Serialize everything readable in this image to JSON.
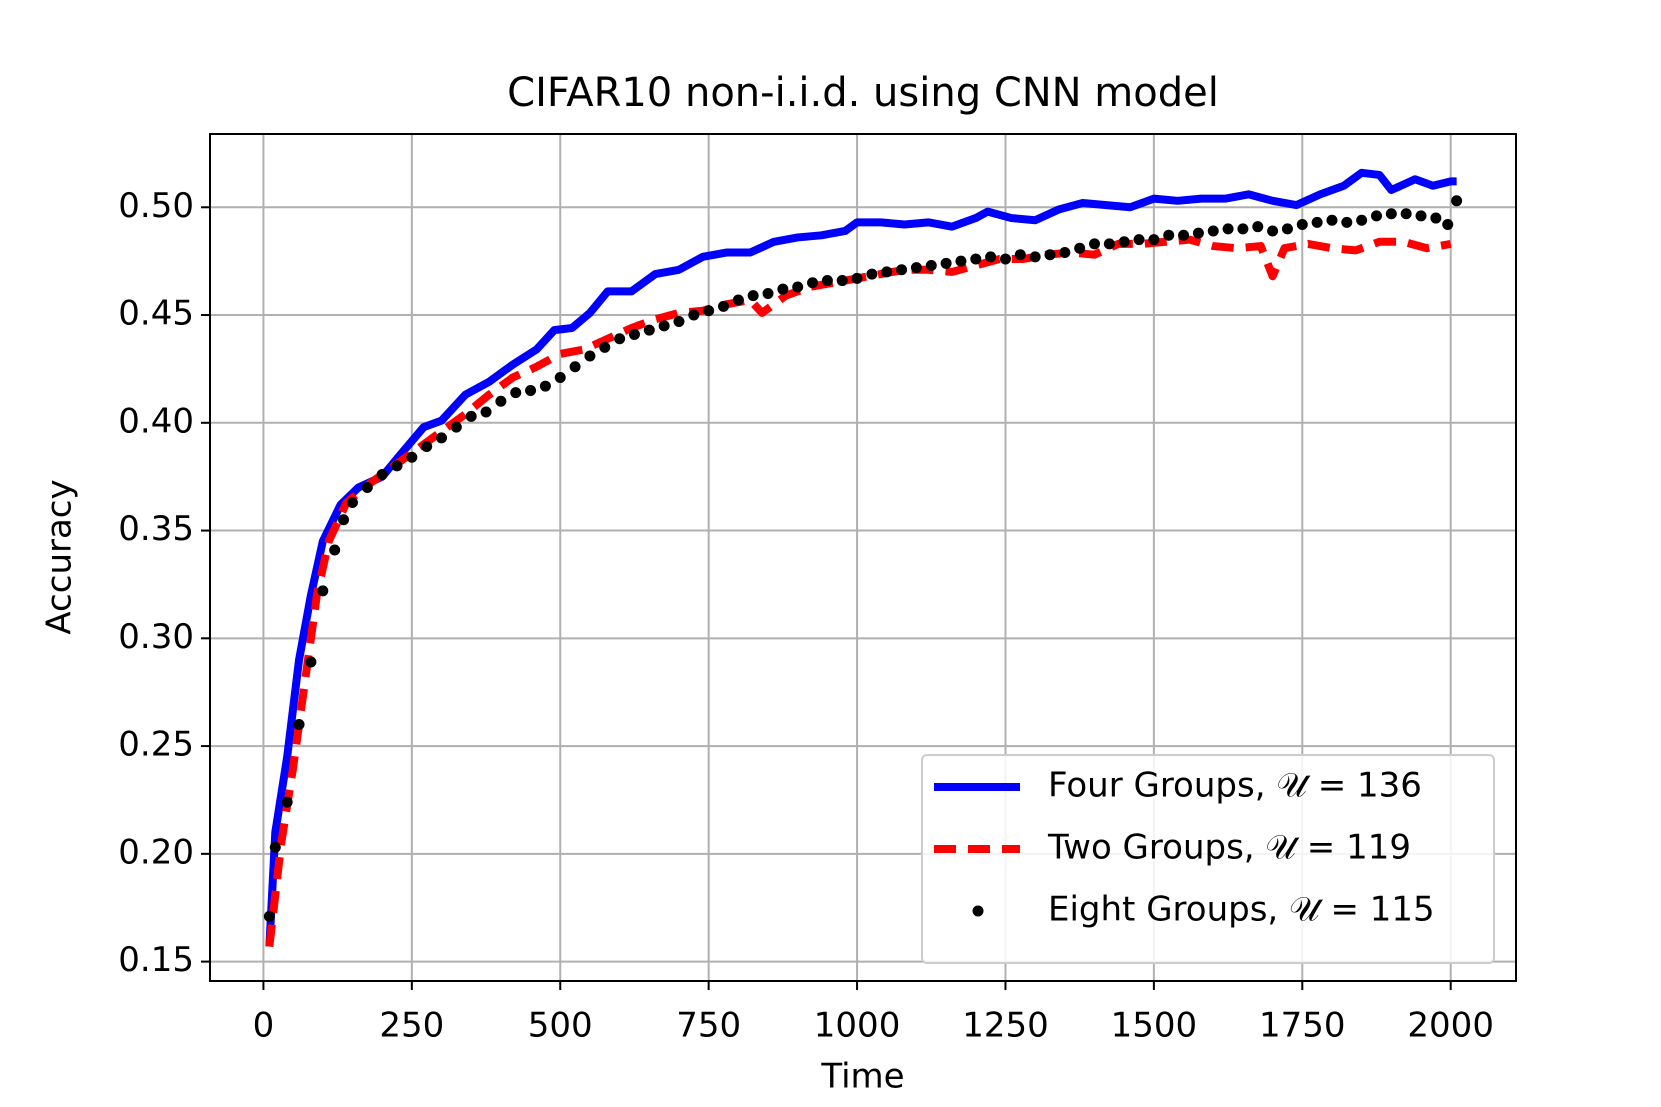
{
  "chart_data": {
    "type": "line",
    "title": "CIFAR10 non-i.i.d. using CNN model",
    "x_label": "Time",
    "y_label": "Accuracy",
    "xlim": [
      -90,
      2110
    ],
    "ylim": [
      0.141,
      0.534
    ],
    "xticks": [
      0,
      250,
      500,
      750,
      1000,
      1250,
      1500,
      1750,
      2000
    ],
    "yticks": [
      0.15,
      {
        "value": 0.2,
        "label": "0.20"
      },
      0.25,
      {
        "value": 0.3,
        "label": "0.30"
      },
      0.35,
      {
        "value": 0.4,
        "label": "0.40"
      },
      0.45,
      {
        "value": 0.5,
        "label": "0.50"
      }
    ],
    "grid": true,
    "legend": "lower right",
    "series": [
      {
        "name": "Four Groups, 𝒰 = 136",
        "color": "#0000ff",
        "style": "solid",
        "x": [
          10,
          20,
          40,
          60,
          80,
          100,
          130,
          160,
          200,
          230,
          270,
          300,
          340,
          380,
          420,
          460,
          490,
          520,
          550,
          580,
          620,
          660,
          700,
          740,
          780,
          820,
          860,
          900,
          940,
          980,
          1000,
          1040,
          1080,
          1120,
          1160,
          1200,
          1220,
          1260,
          1300,
          1340,
          1380,
          1420,
          1460,
          1500,
          1540,
          1580,
          1620,
          1660,
          1700,
          1740,
          1780,
          1820,
          1850,
          1880,
          1900,
          1940,
          1970,
          2000,
          2010
        ],
        "values": [
          0.157,
          0.21,
          0.245,
          0.29,
          0.32,
          0.345,
          0.362,
          0.37,
          0.375,
          0.385,
          0.398,
          0.401,
          0.413,
          0.419,
          0.427,
          0.434,
          0.443,
          0.444,
          0.451,
          0.461,
          0.461,
          0.469,
          0.471,
          0.477,
          0.479,
          0.479,
          0.484,
          0.486,
          0.487,
          0.489,
          0.493,
          0.493,
          0.492,
          0.493,
          0.491,
          0.495,
          0.498,
          0.495,
          0.494,
          0.499,
          0.502,
          0.501,
          0.5,
          0.504,
          0.503,
          0.504,
          0.504,
          0.506,
          0.503,
          0.501,
          0.506,
          0.51,
          0.516,
          0.515,
          0.508,
          0.513,
          0.51,
          0.512,
          0.512
        ]
      },
      {
        "name": "Two Groups, 𝒰 = 119",
        "color": "#ff0000",
        "style": "dashed",
        "x": [
          10,
          30,
          50,
          70,
          90,
          110,
          140,
          180,
          220,
          260,
          300,
          340,
          380,
          420,
          460,
          500,
          540,
          580,
          620,
          660,
          700,
          740,
          780,
          820,
          840,
          880,
          920,
          960,
          1000,
          1040,
          1080,
          1120,
          1160,
          1200,
          1240,
          1280,
          1320,
          1360,
          1400,
          1440,
          1480,
          1520,
          1560,
          1600,
          1640,
          1680,
          1700,
          1720,
          1760,
          1800,
          1840,
          1880,
          1920,
          1960,
          2000
        ],
        "values": [
          0.157,
          0.205,
          0.24,
          0.28,
          0.32,
          0.345,
          0.363,
          0.372,
          0.38,
          0.388,
          0.396,
          0.404,
          0.413,
          0.421,
          0.426,
          0.432,
          0.434,
          0.439,
          0.444,
          0.448,
          0.451,
          0.452,
          0.455,
          0.457,
          0.451,
          0.459,
          0.463,
          0.465,
          0.467,
          0.469,
          0.471,
          0.471,
          0.47,
          0.473,
          0.476,
          0.476,
          0.478,
          0.479,
          0.478,
          0.483,
          0.483,
          0.484,
          0.485,
          0.482,
          0.481,
          0.482,
          0.468,
          0.481,
          0.483,
          0.481,
          0.48,
          0.484,
          0.484,
          0.481,
          0.483
        ]
      },
      {
        "name": "Eight Groups, 𝒰 = 115",
        "color": "#000000",
        "style": "dots",
        "x": [
          10,
          20,
          40,
          60,
          80,
          100,
          120,
          135,
          150,
          175,
          200,
          225,
          250,
          275,
          300,
          325,
          350,
          375,
          400,
          425,
          450,
          475,
          500,
          525,
          550,
          575,
          600,
          625,
          650,
          675,
          700,
          725,
          750,
          775,
          800,
          825,
          850,
          875,
          900,
          925,
          950,
          975,
          1000,
          1025,
          1050,
          1075,
          1100,
          1125,
          1150,
          1175,
          1200,
          1225,
          1250,
          1275,
          1300,
          1325,
          1350,
          1375,
          1400,
          1425,
          1450,
          1475,
          1500,
          1525,
          1550,
          1575,
          1600,
          1625,
          1650,
          1675,
          1700,
          1725,
          1750,
          1775,
          1800,
          1825,
          1850,
          1875,
          1900,
          1925,
          1950,
          1975,
          1995,
          2010
        ],
        "values": [
          0.171,
          0.203,
          0.224,
          0.26,
          0.289,
          0.322,
          0.341,
          0.355,
          0.363,
          0.37,
          0.376,
          0.38,
          0.384,
          0.389,
          0.393,
          0.398,
          0.403,
          0.405,
          0.41,
          0.414,
          0.415,
          0.417,
          0.421,
          0.426,
          0.431,
          0.435,
          0.439,
          0.441,
          0.443,
          0.445,
          0.447,
          0.45,
          0.452,
          0.454,
          0.457,
          0.459,
          0.46,
          0.462,
          0.463,
          0.465,
          0.466,
          0.466,
          0.467,
          0.469,
          0.47,
          0.471,
          0.472,
          0.473,
          0.474,
          0.475,
          0.476,
          0.477,
          0.476,
          0.478,
          0.477,
          0.478,
          0.479,
          0.481,
          0.483,
          0.483,
          0.484,
          0.485,
          0.485,
          0.487,
          0.487,
          0.488,
          0.489,
          0.49,
          0.49,
          0.491,
          0.489,
          0.49,
          0.492,
          0.493,
          0.494,
          0.493,
          0.494,
          0.496,
          0.497,
          0.497,
          0.496,
          0.495,
          0.492,
          0.503
        ]
      }
    ]
  }
}
